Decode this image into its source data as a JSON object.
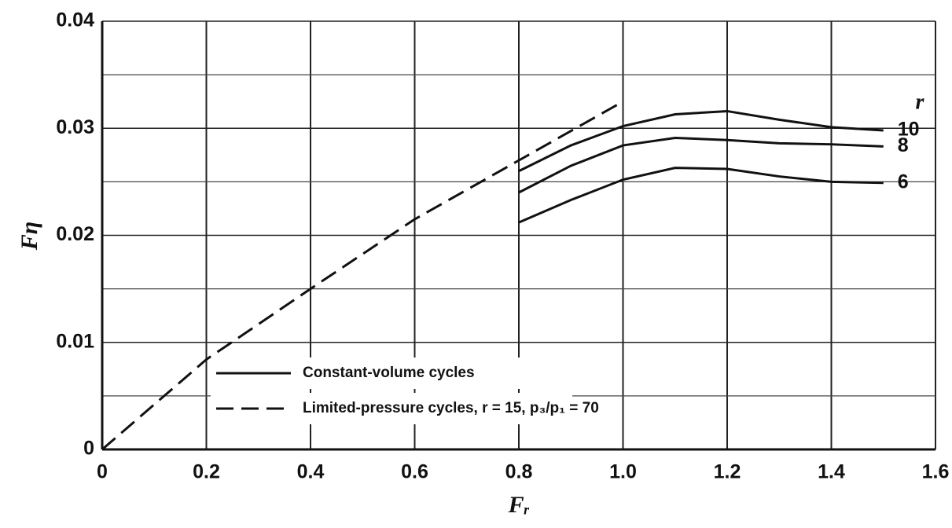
{
  "chart_data": {
    "type": "line",
    "xlabel": "Fᵣ",
    "ylabel": "Fη",
    "xlim": [
      0,
      1.6
    ],
    "xticks": [
      0,
      0.2,
      0.4,
      0.6,
      0.8,
      {
        "value": 1,
        "label": "1.0"
      },
      1.2,
      1.4,
      1.6
    ],
    "ylim": [
      0,
      0.04
    ],
    "yticks": [
      0,
      0.01,
      0.02,
      0.03,
      0.04
    ],
    "yminor": [
      0.005,
      0.015,
      0.025,
      0.035
    ],
    "grid": true,
    "series_label_title": "r",
    "legend": [
      {
        "label": "Constant-volume cycles",
        "style": "solid"
      },
      {
        "label": "Limited-pressure cycles, r = 15, p₃/p₁ = 70",
        "style": "dashed"
      }
    ],
    "legend_position": "lower center",
    "series": [
      {
        "style": "dashed",
        "color": "#111111",
        "x": [
          0,
          0.2,
          0.4,
          0.6,
          0.8,
          1.0
        ],
        "values": [
          0,
          0.0084,
          0.015,
          0.0215,
          0.027,
          0.0325
        ]
      },
      {
        "name": "10",
        "style": "solid",
        "color": "#111111",
        "x": [
          0.8,
          0.9,
          1.0,
          1.1,
          1.2,
          1.3,
          1.4,
          1.5
        ],
        "values": [
          0.026,
          0.0284,
          0.0302,
          0.0313,
          0.0316,
          0.0308,
          0.0301,
          0.0298
        ]
      },
      {
        "name": "8",
        "style": "solid",
        "color": "#111111",
        "x": [
          0.8,
          0.9,
          1.0,
          1.1,
          1.2,
          1.3,
          1.4,
          1.5
        ],
        "values": [
          0.024,
          0.0265,
          0.0284,
          0.0291,
          0.0289,
          0.0286,
          0.0285,
          0.0283
        ]
      },
      {
        "name": "6",
        "style": "solid",
        "color": "#111111",
        "x": [
          0.8,
          0.9,
          1.0,
          1.1,
          1.2,
          1.3,
          1.4,
          1.5
        ],
        "values": [
          0.0212,
          0.0233,
          0.0252,
          0.0263,
          0.0262,
          0.0255,
          0.025,
          0.0249
        ]
      }
    ]
  }
}
